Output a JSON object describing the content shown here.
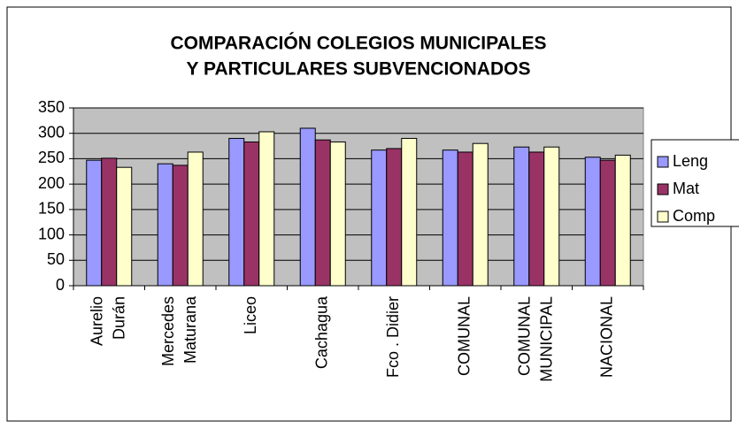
{
  "chart_data": {
    "type": "bar",
    "title": [
      "COMPARACIÓN COLEGIOS MUNICIPALES",
      "Y PARTICULARES SUBVENCIONADOS"
    ],
    "categories": [
      [
        "Aurelio",
        "Durán"
      ],
      [
        "Mercedes",
        "Maturana"
      ],
      [
        "Liceo"
      ],
      [
        "Cachagua"
      ],
      [
        "Fco . Didier"
      ],
      [
        "COMUNAL"
      ],
      [
        "COMUNAL",
        "MUNICIPAL"
      ],
      [
        "NACIONAL"
      ]
    ],
    "series": [
      {
        "name": "Leng",
        "color": "#9999ff",
        "values": [
          247,
          240,
          290,
          310,
          267,
          267,
          273,
          253
        ]
      },
      {
        "name": "Mat",
        "color": "#993366",
        "values": [
          251,
          237,
          283,
          287,
          270,
          263,
          263,
          247
        ]
      },
      {
        "name": "Comp",
        "color": "#ffffcc",
        "values": [
          233,
          263,
          303,
          283,
          290,
          280,
          273,
          257
        ]
      }
    ],
    "ylim": [
      0,
      350
    ],
    "yticks": [
      0,
      50,
      100,
      150,
      200,
      250,
      300,
      350
    ],
    "grid": true,
    "legend": "right"
  }
}
